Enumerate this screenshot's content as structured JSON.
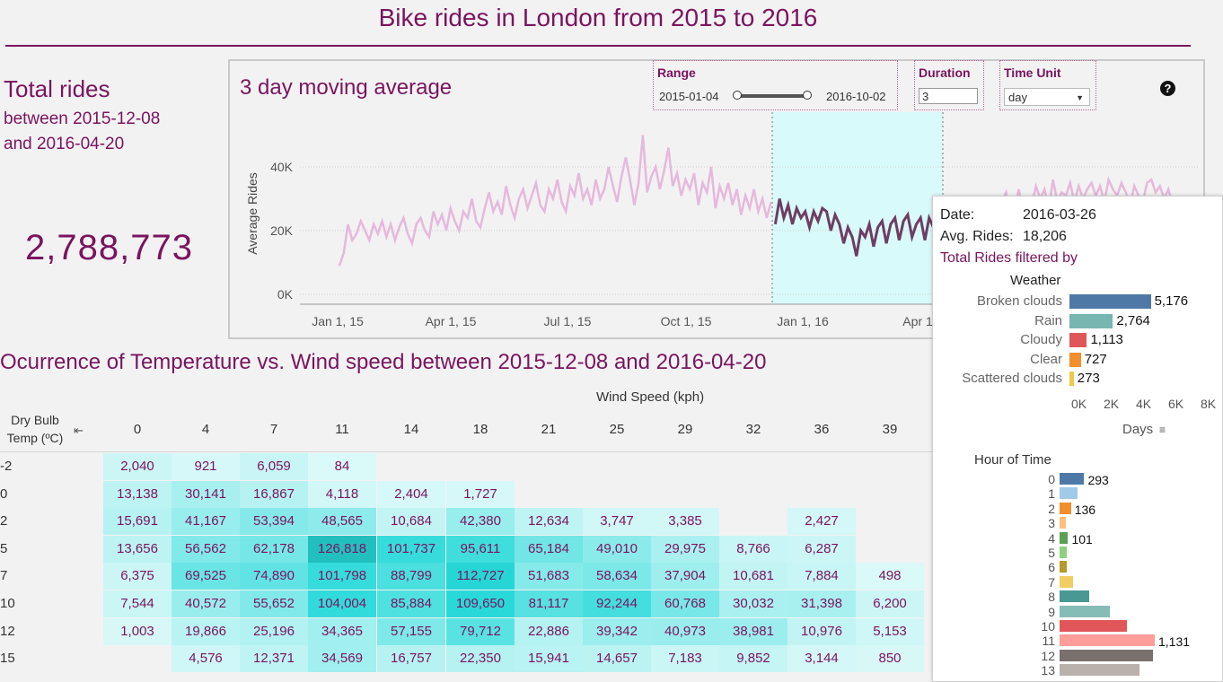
{
  "title": "Bike rides in London from 2015 to 2016",
  "summary": {
    "label": "Total rides",
    "between_label": "between",
    "start_date": "2015-12-08",
    "and_label": "and",
    "end_date": "2016-04-20",
    "total": "2,788,773"
  },
  "moving_avg": {
    "title": "3 day moving average",
    "range": {
      "label": "Range",
      "start": "2015-01-04",
      "end": "2016-10-02"
    },
    "duration": {
      "label": "Duration",
      "value": "3"
    },
    "time_unit": {
      "label": "Time Unit",
      "value": "day"
    },
    "help_icon": "question-circle-icon"
  },
  "chart_data": {
    "type": "line",
    "ylabel": "Average Rides",
    "y_ticks": [
      "0K",
      "20K",
      "40K"
    ],
    "ylim": [
      0,
      50000
    ],
    "x_ticks": [
      "Jan 1, 15",
      "Apr 1, 15",
      "Jul 1, 15",
      "Oct 1, 15",
      "Jan 1, 16",
      "Apr 1"
    ],
    "highlight": {
      "start": "2015-12-08",
      "end": "2016-04-20"
    },
    "colors": {
      "dimmed": "#e6b8dc",
      "highlighted": "#6e3d63",
      "band": "#d9fafa"
    },
    "series": [
      {
        "values": [
          9000,
          13000,
          22000,
          17000,
          19000,
          23000,
          20000,
          17000,
          22000,
          19000,
          23000,
          18000,
          22000,
          17000,
          21000,
          24000,
          19000,
          16000,
          22000,
          24000,
          20000,
          18000,
          26000,
          22000,
          25000,
          20000,
          27000,
          23000,
          20000,
          26000,
          24000,
          30000,
          23000,
          21000,
          27000,
          32000,
          26000,
          29000,
          25000,
          34000,
          28000,
          24000,
          30000,
          33000,
          27000,
          31000,
          35000,
          28000,
          26000,
          33000,
          30000,
          36000,
          29000,
          26000,
          34000,
          31000,
          38000,
          30000,
          33000,
          28000,
          36000,
          30000,
          33000,
          40000,
          34000,
          29000,
          37000,
          43000,
          36000,
          28000,
          35000,
          50000,
          32000,
          37000,
          40000,
          33000,
          39000,
          46000,
          34000,
          38000,
          31000,
          36000,
          33000,
          38000,
          28000,
          35000,
          32000,
          40000,
          27000,
          34000,
          30000,
          35000,
          28000,
          33000,
          25000,
          31000,
          27000,
          33000,
          26000,
          30000,
          24000,
          29000,
          22000,
          30000,
          24000,
          28000,
          22000,
          27000,
          24000,
          26000,
          21000,
          26000,
          23000,
          27000,
          26000,
          20000,
          25000,
          22000,
          16000,
          21000,
          18000,
          12000,
          20000,
          18000,
          22000,
          15000,
          21000,
          23000,
          16000,
          22000,
          24000,
          17000,
          23000,
          25000,
          18000,
          22000,
          24000,
          17000,
          24000,
          21000,
          26000,
          19000,
          25000,
          28000,
          20000,
          27000,
          24000,
          10000,
          26000,
          22000,
          29000,
          20000,
          30000,
          25000,
          22000,
          29000,
          32000,
          24000,
          27000,
          33000,
          25000,
          30000,
          28000,
          34000,
          30000,
          33000,
          27000,
          36000,
          29000,
          32000,
          31000,
          35000,
          29000,
          34000,
          30000,
          33000,
          35000,
          31000,
          34000,
          29000,
          36000,
          33000,
          31000,
          35000,
          32000,
          28000,
          34000,
          31000,
          29000,
          35000,
          36000,
          32000,
          34000,
          30000,
          33000,
          28000
        ]
      }
    ]
  },
  "heatmap": {
    "title": "Ocurrence of Temperature vs. Wind speed between",
    "start_date": "2015-12-08",
    "and_label": "and",
    "end_date": "2016-04-20",
    "x_label": "Wind Speed (kph)",
    "y_label": "Dry Bulb Temp (ºC)",
    "columns": [
      "0",
      "4",
      "7",
      "11",
      "14",
      "18",
      "21",
      "25",
      "29",
      "32",
      "36",
      "39"
    ],
    "rows": [
      {
        "temp": "-2",
        "values": [
          "2,040",
          "921",
          "6,059",
          "84",
          "",
          "",
          "",
          "",
          "",
          "",
          "",
          ""
        ],
        "levels": [
          0.08,
          0.03,
          0.1,
          0.01,
          0,
          0,
          0,
          0,
          0,
          0,
          0,
          0
        ]
      },
      {
        "temp": "0",
        "values": [
          "13,138",
          "30,141",
          "16,867",
          "4,118",
          "2,404",
          "1,727",
          "",
          "",
          "",
          "",
          "",
          ""
        ],
        "levels": [
          0.15,
          0.25,
          0.18,
          0.05,
          0.03,
          0.03,
          0,
          0,
          0,
          0,
          0,
          0
        ]
      },
      {
        "temp": "2",
        "values": [
          "15,691",
          "41,167",
          "53,394",
          "48,565",
          "10,684",
          "42,380",
          "12,634",
          "3,747",
          "3,385",
          "",
          "2,427",
          ""
        ],
        "levels": [
          0.18,
          0.33,
          0.42,
          0.38,
          0.12,
          0.33,
          0.14,
          0.05,
          0.05,
          0,
          0.04,
          0
        ]
      },
      {
        "temp": "5",
        "values": [
          "13,656",
          "56,562",
          "62,178",
          "126,818",
          "101,737",
          "95,611",
          "65,184",
          "49,010",
          "29,975",
          "8,766",
          "6,287",
          ""
        ],
        "levels": [
          0.15,
          0.44,
          0.49,
          1.0,
          0.8,
          0.75,
          0.51,
          0.39,
          0.24,
          0.1,
          0.08,
          0
        ]
      },
      {
        "temp": "7",
        "values": [
          "6,375",
          "69,525",
          "74,890",
          "101,798",
          "88,799",
          "112,727",
          "51,683",
          "58,634",
          "37,904",
          "10,681",
          "7,884",
          "498"
        ],
        "levels": [
          0.08,
          0.55,
          0.59,
          0.8,
          0.7,
          0.89,
          0.41,
          0.46,
          0.3,
          0.12,
          0.1,
          0.01
        ]
      },
      {
        "temp": "10",
        "values": [
          "7,544",
          "40,572",
          "55,652",
          "104,004",
          "85,884",
          "109,650",
          "81,117",
          "92,244",
          "60,768",
          "30,032",
          "31,398",
          "6,200"
        ],
        "levels": [
          0.09,
          0.32,
          0.44,
          0.82,
          0.68,
          0.86,
          0.64,
          0.73,
          0.48,
          0.24,
          0.25,
          0.08
        ]
      },
      {
        "temp": "12",
        "values": [
          "1,003",
          "19,866",
          "25,196",
          "34,365",
          "57,155",
          "79,712",
          "22,886",
          "39,342",
          "40,973",
          "38,981",
          "10,976",
          "5,153"
        ],
        "levels": [
          0.02,
          0.17,
          0.2,
          0.28,
          0.45,
          0.63,
          0.19,
          0.31,
          0.32,
          0.31,
          0.12,
          0.06
        ]
      },
      {
        "temp": "15",
        "values": [
          "",
          "4,576",
          "12,371",
          "34,569",
          "16,757",
          "22,350",
          "15,941",
          "14,657",
          "7,183",
          "9,852",
          "3,144",
          "850"
        ],
        "levels": [
          0,
          0.06,
          0.14,
          0.28,
          0.18,
          0.19,
          0.17,
          0.16,
          0.09,
          0.11,
          0.04,
          0.02
        ]
      }
    ]
  },
  "tooltip": {
    "date_label": "Date:",
    "date_value": "2016-03-26",
    "avg_label": "Avg. Rides:",
    "avg_value": "18,206",
    "filtered_label": "Total Rides filtered by",
    "weather": {
      "title": "Weather",
      "axis_ticks": [
        "0K",
        "2K",
        "4K",
        "6K",
        "8K"
      ],
      "axis_label": "Days",
      "items": [
        {
          "label": "Broken clouds",
          "value": "5,176",
          "num": 5176,
          "color": "#4e79a7"
        },
        {
          "label": "Rain",
          "value": "2,764",
          "num": 2764,
          "color": "#76b7b2"
        },
        {
          "label": "Cloudy",
          "value": "1,113",
          "num": 1113,
          "color": "#e15759"
        },
        {
          "label": "Clear",
          "value": "727",
          "num": 727,
          "color": "#f28e2b"
        },
        {
          "label": "Scattered clouds",
          "value": "273",
          "num": 273,
          "color": "#edc948"
        }
      ]
    },
    "hours": {
      "title": "Hour of Time",
      "items": [
        {
          "label": "0",
          "value": "293",
          "num": 293,
          "color": "#4e79a7"
        },
        {
          "label": "1",
          "value": "",
          "num": 210,
          "color": "#a0cbe8"
        },
        {
          "label": "2",
          "value": "136",
          "num": 136,
          "color": "#f28e2b"
        },
        {
          "label": "3",
          "value": "",
          "num": 80,
          "color": "#ffbe7d"
        },
        {
          "label": "4",
          "value": "101",
          "num": 101,
          "color": "#59a14f"
        },
        {
          "label": "5",
          "value": "",
          "num": 85,
          "color": "#8cd17d"
        },
        {
          "label": "6",
          "value": "",
          "num": 90,
          "color": "#b6992d"
        },
        {
          "label": "7",
          "value": "",
          "num": 160,
          "color": "#f1ce63"
        },
        {
          "label": "8",
          "value": "",
          "num": 350,
          "color": "#499894"
        },
        {
          "label": "9",
          "value": "",
          "num": 600,
          "color": "#86bcb6"
        },
        {
          "label": "10",
          "value": "",
          "num": 800,
          "color": "#e15759"
        },
        {
          "label": "11",
          "value": "1,131",
          "num": 1131,
          "color": "#ff9d9a"
        },
        {
          "label": "12",
          "value": "",
          "num": 1110,
          "color": "#79706e"
        },
        {
          "label": "13",
          "value": "",
          "num": 950,
          "color": "#bab0ac"
        }
      ]
    }
  }
}
